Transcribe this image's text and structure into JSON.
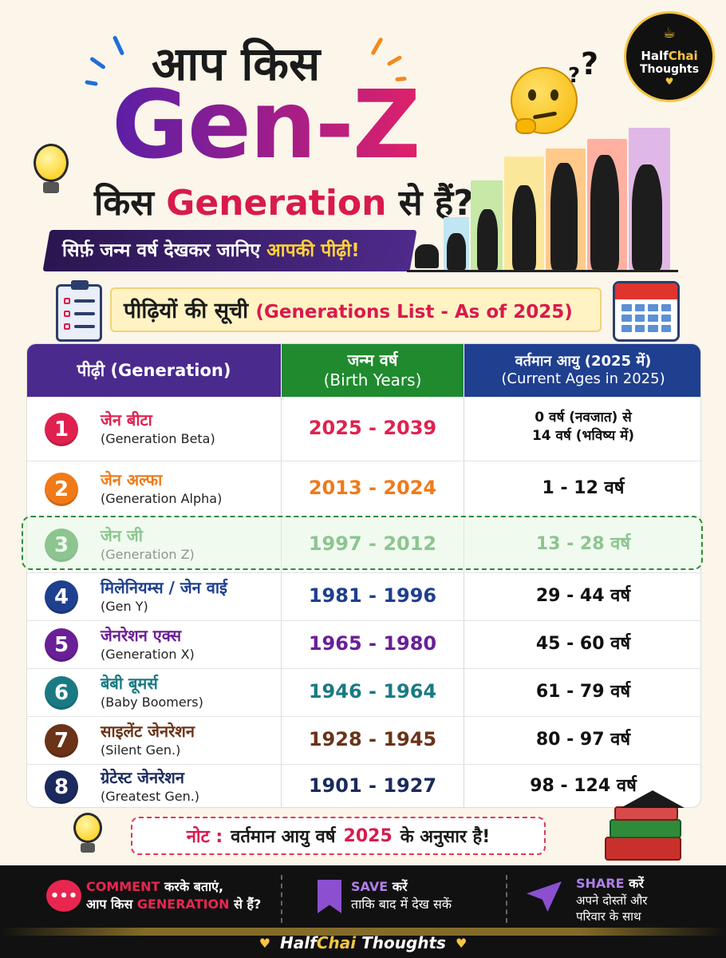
{
  "header": {
    "line1": "आप किस",
    "genz": "Gen-Z",
    "line3_pre": "किस",
    "line3_gen": "Generation",
    "line3_post": "से हैं?",
    "ribbon_main": "सिर्फ़ जन्म वर्ष देखकर जानिए",
    "ribbon_highlight": "आपकी पीढ़ी!"
  },
  "logo": {
    "half": "Half",
    "chai": "Chai",
    "thoughts": "Thoughts",
    "cup_icon": "coffee-cup-icon",
    "heart_icon": "heart-icon"
  },
  "thinking": {
    "qmarks": "?",
    "qmarks2": "?"
  },
  "section": {
    "title_hi": "पीढ़ियों की सूची",
    "title_en": "(Generations List - As of 2025)"
  },
  "table": {
    "headers": {
      "generation": "पीढ़ी (Generation)",
      "birth_hi": "जन्म वर्ष",
      "birth_en": "(Birth Years)",
      "ages_hi": "वर्तमान आयु (2025 में)",
      "ages_en": "(Current Ages in 2025)"
    },
    "rows": [
      {
        "num": "1",
        "name": "जेन बीटा",
        "sub": "(Generation Beta)",
        "years": "2025 - 2039",
        "age1": "0 वर्ष (नवजात) से",
        "age2": "14 वर्ष (भविष्य में)",
        "color": "#e0214f"
      },
      {
        "num": "2",
        "name": "जेन अल्फा",
        "sub": "(Generation Alpha)",
        "years": "2013 - 2024",
        "age1": "1 - 12 वर्ष",
        "color": "#f07a18"
      },
      {
        "num": "3",
        "name": "जेन जी",
        "sub": "(Generation Z)",
        "years": "1997 - 2012",
        "age1": "13 - 28 वर्ष",
        "color": "#1f8a2e"
      },
      {
        "num": "4",
        "name": "मिलेनियम्स / जेन वाई",
        "sub": "(Gen Y)",
        "years": "1981 - 1996",
        "age1": "29 - 44 वर्ष",
        "color": "#1f3f8f"
      },
      {
        "num": "5",
        "name": "जेनरेशन एक्स",
        "sub": "(Generation X)",
        "years": "1965 - 1980",
        "age1": "45 - 60 वर्ष",
        "color": "#6a1f96"
      },
      {
        "num": "6",
        "name": "बेबी बूमर्स",
        "sub": "(Baby Boomers)",
        "years": "1946 - 1964",
        "age1": "61 - 79 वर्ष",
        "color": "#1a7a84"
      },
      {
        "num": "7",
        "name": "साइलेंट जेनरेशन",
        "sub": "(Silent Gen.)",
        "years": "1928 - 1945",
        "age1": "80 - 97 वर्ष",
        "color": "#6b3318"
      },
      {
        "num": "8",
        "name": "ग्रेटेस्ट जेनरेशन",
        "sub": "(Greatest Gen.)",
        "years": "1901 - 1927",
        "age1": "98 - 124 वर्ष",
        "color": "#1b2a5e"
      }
    ]
  },
  "note": {
    "label": "नोट :",
    "pre": "वर्तमान आयु वर्ष",
    "year": "2025",
    "post": "के अनुसार है!"
  },
  "footer": {
    "comment_kw": "COMMENT",
    "comment_1": "करके बताएं,",
    "comment_2a": "आप किस",
    "comment_2kw": "GENERATION",
    "comment_2b": "से हैं?",
    "save_kw": "SAVE",
    "save_1": "करें",
    "save_2": "ताकि बाद में देख सकें",
    "share_kw": "SHARE",
    "share_1": "करें",
    "share_2": "अपने दोस्तों और",
    "share_3": "परिवार के साथ",
    "brand_half": "Half",
    "brand_chai": "Chai",
    "brand_thoughts": "Thoughts",
    "brand_heart": "♥"
  },
  "colors": {
    "bg": "#fbf5ea",
    "accent_pink": "#d81a4e",
    "purple": "#4b2a8e",
    "green": "#1f8a2e",
    "blue": "#1f3f8f"
  }
}
